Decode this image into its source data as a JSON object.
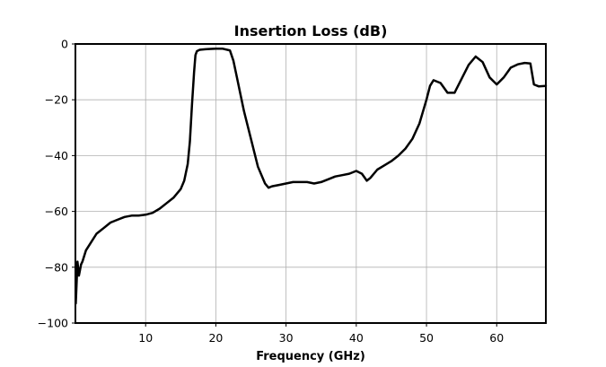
{
  "chart_data": {
    "type": "line",
    "title": "Insertion Loss (dB)",
    "xlabel": "Frequency (GHz)",
    "ylabel": "",
    "xlim": [
      0,
      67
    ],
    "ylim": [
      -100,
      0
    ],
    "xticks": [
      10,
      20,
      30,
      40,
      50,
      60
    ],
    "yticks": [
      0,
      -20,
      -40,
      -60,
      -80,
      -100
    ],
    "xtick_labels": [
      "10",
      "20",
      "30",
      "40",
      "50",
      "60"
    ],
    "ytick_labels": [
      "0",
      "−20",
      "−40",
      "−60",
      "−80",
      "−100"
    ],
    "grid": true,
    "legend": "none",
    "line_color": "#000000",
    "series": [
      {
        "x": [
          0.05,
          0.3,
          0.5,
          0.8,
          1.0,
          1.5,
          2.0,
          3.0,
          4.0,
          5.0,
          6.0,
          7.0,
          8.0,
          9.0,
          10.0,
          11.0,
          12.0,
          13.0,
          14.0,
          15.0,
          15.5,
          16.0,
          16.3,
          16.6,
          16.9,
          17.1,
          17.3,
          17.5,
          17.7,
          18.0,
          18.5,
          19.0,
          20.0,
          21.0,
          22.0,
          22.5,
          23.0,
          23.5,
          24.0,
          25.0,
          26.0,
          27.0,
          27.5,
          28.0,
          29.0,
          30.0,
          31.0,
          32.0,
          33.0,
          34.0,
          35.0,
          36.0,
          37.0,
          38.0,
          39.0,
          40.0,
          40.8,
          41.5,
          42.0,
          43.0,
          44.0,
          45.0,
          46.0,
          47.0,
          48.0,
          49.0,
          50.0,
          50.5,
          51.0,
          52.0,
          53.0,
          54.0,
          55.0,
          56.0,
          57.0,
          58.0,
          59.0,
          60.0,
          61.0,
          62.0,
          63.0,
          64.0,
          64.8,
          65.3,
          66.0,
          67.0
        ],
        "y": [
          -93,
          -78,
          -83,
          -79,
          -78,
          -74,
          -72,
          -68,
          -66,
          -64,
          -63,
          -62,
          -61.5,
          -61.5,
          -61.2,
          -60.5,
          -59,
          -57,
          -55,
          -52,
          -49,
          -43,
          -35,
          -22,
          -10,
          -4,
          -2.6,
          -2.3,
          -2.1,
          -2,
          -1.9,
          -1.8,
          -1.7,
          -1.7,
          -2.3,
          -6,
          -12,
          -18,
          -24,
          -34,
          -44,
          -50,
          -51.5,
          -51,
          -50.5,
          -50,
          -49.5,
          -49.5,
          -49.5,
          -50,
          -49.5,
          -48.5,
          -47.5,
          -47,
          -46.5,
          -45.5,
          -46.5,
          -49,
          -48,
          -45,
          -43.5,
          -42,
          -40,
          -37.5,
          -34,
          -28.5,
          -20,
          -15,
          -13,
          -14,
          -17.5,
          -17.5,
          -12.5,
          -7.5,
          -4.5,
          -6.5,
          -12,
          -14.5,
          -12,
          -8.5,
          -7.3,
          -6.8,
          -7,
          -14.5,
          -15.2,
          -15
        ]
      }
    ]
  }
}
